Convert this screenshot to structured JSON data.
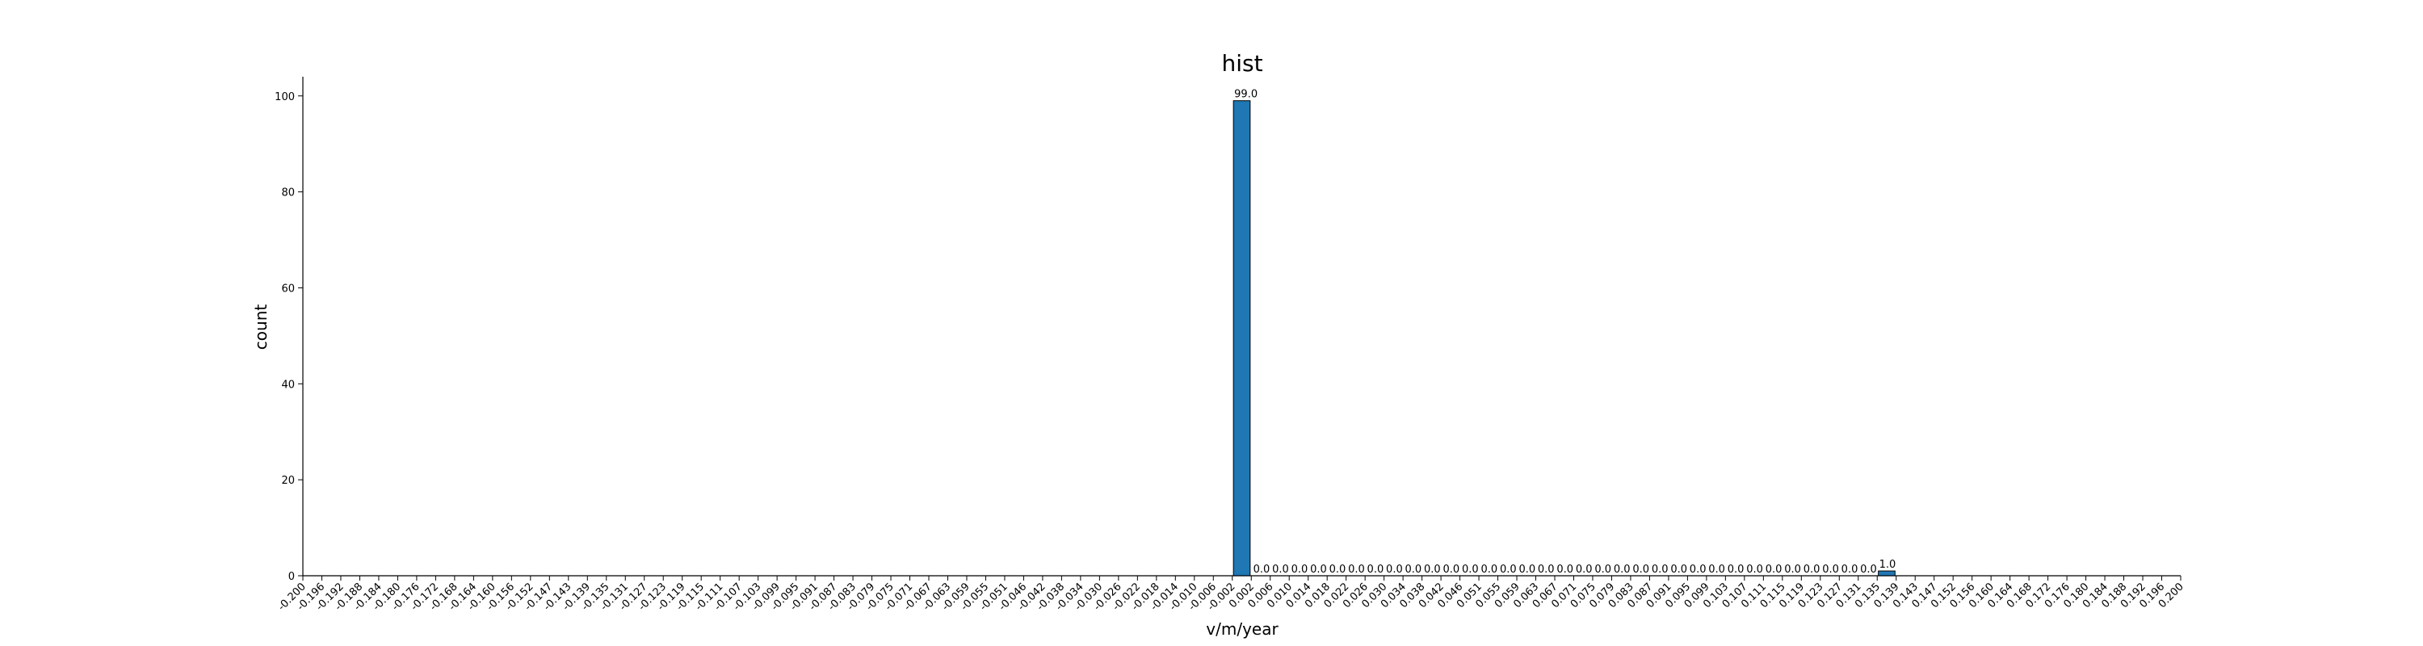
{
  "chart_data": {
    "type": "bar",
    "title": "hist",
    "xlabel": "v/m/year",
    "ylabel": "count",
    "ylim": [
      0,
      104
    ],
    "yticks": [
      0,
      20,
      40,
      60,
      80,
      100
    ],
    "x_ticks": [
      "-0.200",
      "-0.196",
      "-0.192",
      "-0.188",
      "-0.184",
      "-0.180",
      "-0.176",
      "-0.172",
      "-0.168",
      "-0.164",
      "-0.160",
      "-0.156",
      "-0.152",
      "-0.147",
      "-0.143",
      "-0.139",
      "-0.135",
      "-0.131",
      "-0.127",
      "-0.123",
      "-0.119",
      "-0.115",
      "-0.111",
      "-0.107",
      "-0.103",
      "-0.099",
      "-0.095",
      "-0.091",
      "-0.087",
      "-0.083",
      "-0.079",
      "-0.075",
      "-0.071",
      "-0.067",
      "-0.063",
      "-0.059",
      "-0.055",
      "-0.051",
      "-0.046",
      "-0.042",
      "-0.038",
      "-0.034",
      "-0.030",
      "-0.026",
      "-0.022",
      "-0.018",
      "-0.014",
      "-0.010",
      "-0.006",
      "-0.002",
      "0.002",
      "0.006",
      "0.010",
      "0.014",
      "0.018",
      "0.022",
      "0.026",
      "0.030",
      "0.034",
      "0.038",
      "0.042",
      "0.046",
      "0.051",
      "0.055",
      "0.059",
      "0.063",
      "0.067",
      "0.071",
      "0.075",
      "0.079",
      "0.083",
      "0.087",
      "0.091",
      "0.095",
      "0.099",
      "0.103",
      "0.107",
      "0.111",
      "0.115",
      "0.119",
      "0.123",
      "0.127",
      "0.131",
      "0.135",
      "0.139",
      "0.143",
      "0.147",
      "0.152",
      "0.156",
      "0.160",
      "0.164",
      "0.168",
      "0.172",
      "0.176",
      "0.180",
      "0.184",
      "0.188",
      "0.192",
      "0.196",
      "0.200"
    ],
    "bars": [
      {
        "x": "-0.002",
        "value": 99,
        "label": "99.0"
      },
      {
        "x": "0.002",
        "value": 0,
        "label": "0.0"
      },
      {
        "x": "0.006",
        "value": 0,
        "label": "0.0"
      },
      {
        "x": "0.010",
        "value": 0,
        "label": "0.0"
      },
      {
        "x": "0.014",
        "value": 0,
        "label": "0.0"
      },
      {
        "x": "0.018",
        "value": 0,
        "label": "0.0"
      },
      {
        "x": "0.022",
        "value": 0,
        "label": "0.0"
      },
      {
        "x": "0.026",
        "value": 0,
        "label": "0.0"
      },
      {
        "x": "0.030",
        "value": 0,
        "label": "0.0"
      },
      {
        "x": "0.034",
        "value": 0,
        "label": "0.0"
      },
      {
        "x": "0.038",
        "value": 0,
        "label": "0.0"
      },
      {
        "x": "0.042",
        "value": 0,
        "label": "0.0"
      },
      {
        "x": "0.046",
        "value": 0,
        "label": "0.0"
      },
      {
        "x": "0.051",
        "value": 0,
        "label": "0.0"
      },
      {
        "x": "0.055",
        "value": 0,
        "label": "0.0"
      },
      {
        "x": "0.059",
        "value": 0,
        "label": "0.0"
      },
      {
        "x": "0.063",
        "value": 0,
        "label": "0.0"
      },
      {
        "x": "0.067",
        "value": 0,
        "label": "0.0"
      },
      {
        "x": "0.071",
        "value": 0,
        "label": "0.0"
      },
      {
        "x": "0.075",
        "value": 0,
        "label": "0.0"
      },
      {
        "x": "0.079",
        "value": 0,
        "label": "0.0"
      },
      {
        "x": "0.083",
        "value": 0,
        "label": "0.0"
      },
      {
        "x": "0.087",
        "value": 0,
        "label": "0.0"
      },
      {
        "x": "0.091",
        "value": 0,
        "label": "0.0"
      },
      {
        "x": "0.095",
        "value": 0,
        "label": "0.0"
      },
      {
        "x": "0.099",
        "value": 0,
        "label": "0.0"
      },
      {
        "x": "0.103",
        "value": 0,
        "label": "0.0"
      },
      {
        "x": "0.107",
        "value": 0,
        "label": "0.0"
      },
      {
        "x": "0.111",
        "value": 0,
        "label": "0.0"
      },
      {
        "x": "0.115",
        "value": 0,
        "label": "0.0"
      },
      {
        "x": "0.119",
        "value": 0,
        "label": "0.0"
      },
      {
        "x": "0.123",
        "value": 0,
        "label": "0.0"
      },
      {
        "x": "0.127",
        "value": 0,
        "label": "0.0"
      },
      {
        "x": "0.131",
        "value": 0,
        "label": "0.0"
      },
      {
        "x": "0.135",
        "value": 1,
        "label": "1.0"
      }
    ],
    "bar_color": "#1f77b4",
    "bar_edge_color": "#000000",
    "grid": false,
    "legend": "none"
  }
}
